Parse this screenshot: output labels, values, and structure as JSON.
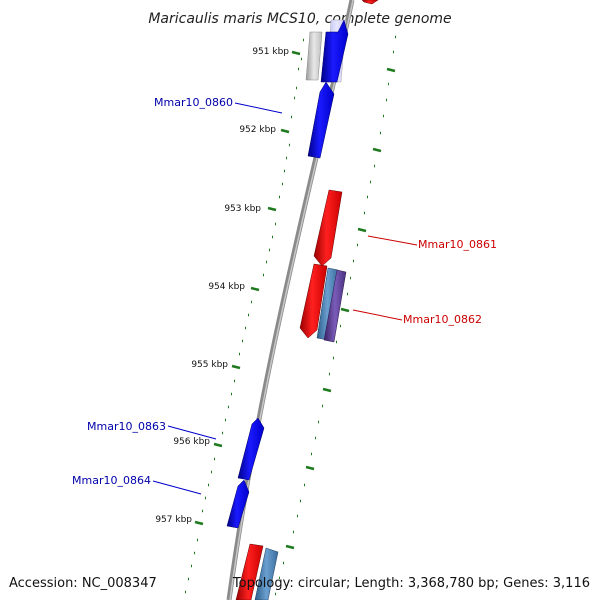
{
  "title": "Maricaulis maris MCS10, complete genome",
  "footer": {
    "accession": "Accession: NC_008347",
    "stats": "Topology: circular; Length: 3,368,780 bp; Genes: 3,116"
  },
  "colors": {
    "backbone": "#8a8a8a",
    "forward_gene": "#0000ee",
    "reverse_gene": "#ee0000",
    "rna_gene": "#4a7fb0",
    "pseudo_gene": "#5b3b8c",
    "ticks": "#1f7a1f",
    "forward_label": "#0000aa",
    "reverse_label": "#cc0000"
  },
  "scale_labels": [
    {
      "text": "951 kbp"
    },
    {
      "text": "952 kbp"
    },
    {
      "text": "953 kbp"
    },
    {
      "text": "954 kbp"
    },
    {
      "text": "955 kbp"
    },
    {
      "text": "956 kbp"
    },
    {
      "text": "957 kbp"
    }
  ],
  "gene_labels": [
    {
      "text": "Mmar10_0860",
      "strand": "forward"
    },
    {
      "text": "Mmar10_0861",
      "strand": "reverse"
    },
    {
      "text": "Mmar10_0862",
      "strand": "reverse"
    },
    {
      "text": "Mmar10_0863",
      "strand": "forward"
    },
    {
      "text": "Mmar10_0864",
      "strand": "forward"
    }
  ]
}
